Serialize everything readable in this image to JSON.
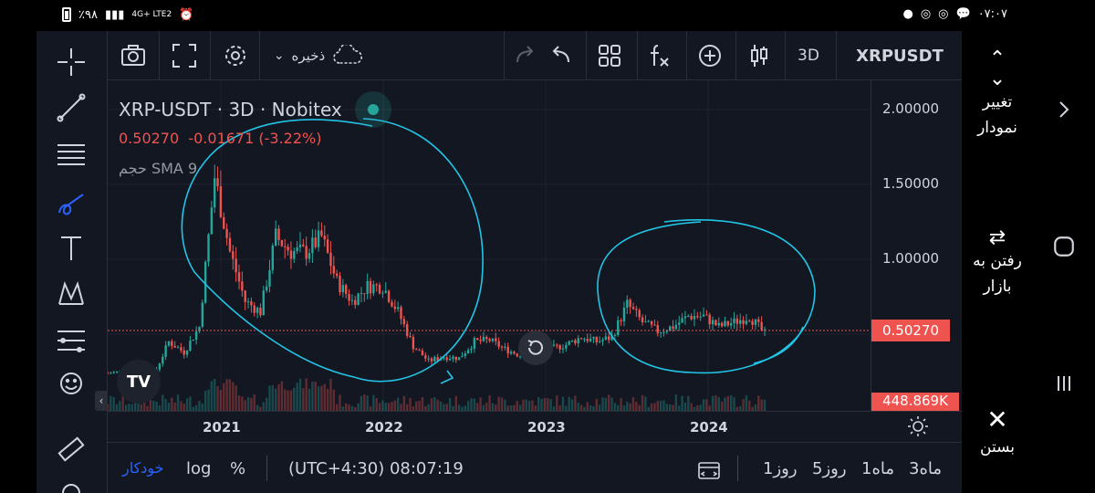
{
  "status_bar": {
    "battery_text": "٪۹۸",
    "signal_text": "4G+ LTE2",
    "time": "۰۷:۰۷"
  },
  "top_toolbar": {
    "save_label": "ذخیره",
    "timeframe": "3D",
    "symbol": "XRPUSDT"
  },
  "legend": {
    "title": "XRP-USDT · 3D · Nobitex",
    "last": "0.50270",
    "change": "-0.01671",
    "change_pct": "(-3.22%)",
    "volume_label": "حجم",
    "sma_label": "SMA 9"
  },
  "price_axis": {
    "ticks": [
      "2.00000",
      "1.50000",
      "1.00000"
    ],
    "current_price": "0.50270",
    "volume_value": "448.869K"
  },
  "time_axis": {
    "ticks": [
      "2021",
      "2022",
      "2023",
      "2024"
    ]
  },
  "bottom_bar": {
    "auto": "خودکار",
    "log": "log",
    "percent": "%",
    "timezone": "(UTC+4:30) 08:07:19",
    "range_1d": "1روز",
    "range_5d": "5روز",
    "range_1m": "1ماه",
    "range_3m": "3ماه"
  },
  "right_panel": {
    "change_chart": [
      "تغییر",
      "نمودار"
    ],
    "go_market": [
      "رفتن به",
      "بازار"
    ],
    "close": "بستن"
  },
  "colors": {
    "bg": "#131722",
    "up": "#26a69a",
    "down": "#ef5350",
    "annotation": "#22c4e6",
    "accent": "#2962ff"
  },
  "chart_data": {
    "type": "candlestick",
    "symbol": "XRP-USDT",
    "interval": "3D",
    "ylim": [
      0.2,
      2.2
    ],
    "x": [
      "2020-09",
      "2020-10",
      "2020-11",
      "2020-12",
      "2021-01",
      "2021-02",
      "2021-03",
      "2021-04",
      "2021-05",
      "2021-06",
      "2021-07",
      "2021-08",
      "2021-09",
      "2021-10",
      "2021-11",
      "2021-12",
      "2022-01",
      "2022-02",
      "2022-03",
      "2022-04",
      "2022-05",
      "2022-06",
      "2022-07",
      "2022-08",
      "2022-09",
      "2022-10",
      "2022-11",
      "2022-12",
      "2023-01",
      "2023-02",
      "2023-03",
      "2023-04",
      "2023-05",
      "2023-06",
      "2023-07",
      "2023-08",
      "2023-09",
      "2023-10",
      "2023-11",
      "2023-12",
      "2024-01",
      "2024-02",
      "2024-03",
      "2024-04"
    ],
    "close": [
      0.24,
      0.25,
      0.31,
      0.22,
      0.45,
      0.38,
      0.55,
      1.55,
      1.05,
      0.72,
      0.65,
      1.15,
      1.05,
      1.05,
      1.15,
      0.85,
      0.72,
      0.82,
      0.82,
      0.65,
      0.42,
      0.32,
      0.35,
      0.34,
      0.45,
      0.46,
      0.4,
      0.36,
      0.38,
      0.4,
      0.43,
      0.48,
      0.45,
      0.48,
      0.7,
      0.58,
      0.52,
      0.55,
      0.62,
      0.62,
      0.55,
      0.58,
      0.62,
      0.5027
    ]
  }
}
